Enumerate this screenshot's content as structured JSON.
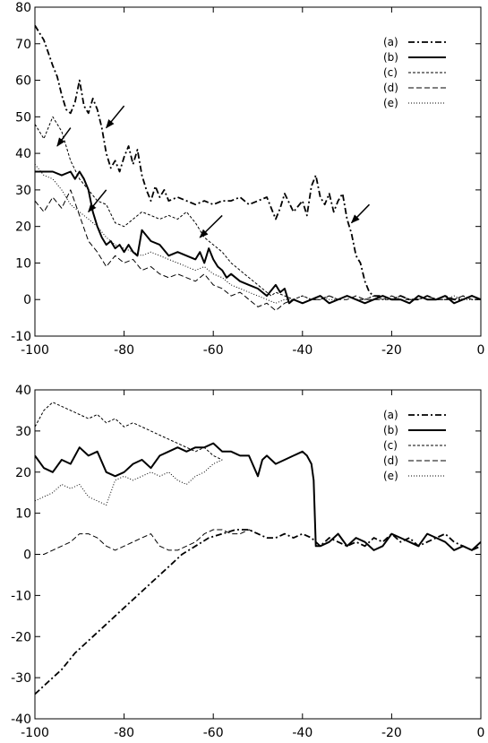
{
  "chart_data": [
    {
      "type": "line",
      "xlim": [
        -100,
        0
      ],
      "ylim": [
        -10,
        80
      ],
      "xticks": [
        -100,
        -80,
        -60,
        -40,
        -20,
        0
      ],
      "yticks": [
        -10,
        0,
        10,
        20,
        30,
        40,
        50,
        60,
        70,
        80
      ],
      "grid": false,
      "legend_position": "top-right",
      "annotations": [
        {
          "type": "arrow",
          "from": [
            -92,
            47
          ],
          "to": [
            -95,
            42
          ]
        },
        {
          "type": "arrow",
          "from": [
            -80,
            53
          ],
          "to": [
            -84,
            47
          ]
        },
        {
          "type": "arrow",
          "from": [
            -84,
            30
          ],
          "to": [
            -88,
            24
          ]
        },
        {
          "type": "arrow",
          "from": [
            -58,
            23
          ],
          "to": [
            -63,
            17
          ]
        },
        {
          "type": "arrow",
          "from": [
            -25,
            26
          ],
          "to": [
            -29,
            21
          ]
        }
      ],
      "series": [
        {
          "name": "(a)",
          "style": "dashdot",
          "width": 1.8,
          "x": [
            -100,
            -98,
            -96,
            -95,
            -94,
            -93,
            -92,
            -91,
            -90,
            -89,
            -88,
            -87,
            -86,
            -85,
            -84,
            -83,
            -82,
            -81,
            -80,
            -79,
            -78,
            -77,
            -76,
            -75,
            -74,
            -73,
            -72,
            -71,
            -70,
            -68,
            -66,
            -64,
            -62,
            -60,
            -58,
            -56,
            -54,
            -52,
            -50,
            -48,
            -46,
            -45,
            -44,
            -42,
            -40,
            -39,
            -38,
            -37,
            -36,
            -35,
            -34,
            -33,
            -32,
            -31,
            -30,
            -29,
            -28,
            -27,
            -26,
            -25,
            -24,
            -22,
            -20,
            -18,
            -16,
            -14,
            -12,
            -10,
            -8,
            -6,
            -4,
            -2,
            0
          ],
          "y": [
            75,
            71,
            64,
            61,
            56,
            52,
            51,
            54,
            60,
            53,
            51,
            55,
            52,
            47,
            40,
            36,
            38,
            35,
            39,
            42,
            37,
            41,
            34,
            30,
            27,
            31,
            28,
            30,
            27,
            28,
            27,
            26,
            27,
            26,
            27,
            27,
            28,
            26,
            27,
            28,
            22,
            25,
            29,
            24,
            27,
            23,
            31,
            34,
            28,
            26,
            29,
            24,
            27,
            29,
            22,
            18,
            12,
            10,
            5,
            2,
            1,
            1,
            0,
            1,
            0,
            0,
            1,
            0,
            1,
            0,
            0,
            1,
            0
          ]
        },
        {
          "name": "(b)",
          "style": "solid",
          "width": 2.0,
          "x": [
            -100,
            -98,
            -96,
            -94,
            -92,
            -91,
            -90,
            -89,
            -88,
            -87,
            -86,
            -85,
            -84,
            -83,
            -82,
            -81,
            -80,
            -79,
            -78,
            -77,
            -76,
            -74,
            -72,
            -70,
            -68,
            -66,
            -64,
            -63,
            -62,
            -61,
            -60,
            -59,
            -58,
            -57,
            -56,
            -54,
            -52,
            -50,
            -48,
            -46,
            -45,
            -44,
            -43,
            -42,
            -40,
            -38,
            -36,
            -34,
            -32,
            -30,
            -28,
            -26,
            -24,
            -22,
            -20,
            -18,
            -16,
            -14,
            -12,
            -10,
            -8,
            -6,
            -4,
            -2,
            0
          ],
          "y": [
            35,
            35,
            35,
            34,
            35,
            33,
            35,
            33,
            30,
            24,
            20,
            17,
            15,
            16,
            14,
            15,
            13,
            15,
            13,
            12,
            19,
            16,
            15,
            12,
            13,
            12,
            11,
            13,
            10,
            14,
            11,
            9,
            8,
            6,
            7,
            5,
            4,
            3,
            1,
            4,
            2,
            3,
            -1,
            0,
            -1,
            0,
            1,
            -1,
            0,
            1,
            0,
            -1,
            0,
            1,
            0,
            0,
            -1,
            1,
            0,
            0,
            1,
            -1,
            0,
            1,
            0
          ]
        },
        {
          "name": "(c)",
          "style": "dashed-fine",
          "width": 1.0,
          "x": [
            -100,
            -98,
            -96,
            -94,
            -92,
            -90,
            -88,
            -86,
            -84,
            -82,
            -80,
            -78,
            -76,
            -74,
            -72,
            -70,
            -68,
            -66,
            -64,
            -62,
            -60,
            -58,
            -56,
            -54,
            -52,
            -50,
            -48,
            -47,
            -46,
            -44,
            -42,
            -40,
            -38,
            -36,
            -34,
            -32,
            -30,
            -28,
            -26,
            -24,
            -22,
            -20,
            -18,
            -16,
            -14,
            -12,
            -10,
            -8,
            -6,
            -4,
            -2,
            0
          ],
          "y": [
            48,
            44,
            50,
            46,
            38,
            33,
            30,
            27,
            26,
            21,
            20,
            22,
            24,
            23,
            22,
            23,
            22,
            24,
            21,
            17,
            15,
            13,
            10,
            8,
            6,
            4,
            2,
            1,
            2,
            1,
            0,
            1,
            0,
            0,
            1,
            0,
            1,
            0,
            0,
            1,
            0,
            0,
            1,
            0,
            0,
            1,
            0,
            0,
            0,
            1,
            0,
            0
          ]
        },
        {
          "name": "(d)",
          "style": "dashed",
          "width": 1.0,
          "x": [
            -100,
            -98,
            -96,
            -94,
            -92,
            -90,
            -88,
            -86,
            -84,
            -82,
            -80,
            -78,
            -76,
            -74,
            -72,
            -70,
            -68,
            -66,
            -64,
            -62,
            -60,
            -58,
            -56,
            -54,
            -52,
            -50,
            -48,
            -46,
            -44,
            -42,
            -40,
            -38,
            -36,
            -34,
            -32,
            -30,
            -28,
            -26,
            -24,
            -22,
            -20,
            -18,
            -16,
            -14,
            -12,
            -10,
            -8,
            -6,
            -4,
            -2,
            0
          ],
          "y": [
            27,
            24,
            28,
            25,
            30,
            23,
            16,
            13,
            9,
            12,
            10,
            11,
            8,
            9,
            7,
            6,
            7,
            6,
            5,
            7,
            4,
            3,
            1,
            2,
            0,
            -2,
            -1,
            -3,
            -1,
            0,
            -1,
            0,
            0,
            1,
            0,
            0,
            1,
            0,
            0,
            0,
            1,
            0,
            0,
            0,
            1,
            0,
            0,
            0,
            1,
            0,
            0
          ]
        },
        {
          "name": "(e)",
          "style": "dotted",
          "width": 1.0,
          "x": [
            -100,
            -98,
            -96,
            -94,
            -92,
            -90,
            -88,
            -86,
            -84,
            -82,
            -80,
            -78,
            -76,
            -74,
            -72,
            -70,
            -68,
            -66,
            -64,
            -62,
            -60,
            -58,
            -56,
            -54,
            -52,
            -50,
            -48,
            -46,
            -44,
            -42,
            -40,
            -38,
            -36,
            -34,
            -32,
            -30,
            -28,
            -26,
            -24,
            -22,
            -20,
            -18,
            -16,
            -14,
            -12,
            -10,
            -8,
            -6,
            -4,
            -2,
            0
          ],
          "y": [
            37,
            34,
            33,
            30,
            26,
            24,
            22,
            20,
            17,
            15,
            14,
            13,
            12,
            13,
            12,
            11,
            10,
            9,
            8,
            9,
            7,
            6,
            4,
            3,
            2,
            1,
            0,
            -1,
            0,
            0,
            1,
            0,
            1,
            0,
            0,
            1,
            0,
            0,
            1,
            0,
            0,
            1,
            0,
            0,
            1,
            0,
            0,
            1,
            0,
            0,
            0
          ]
        }
      ]
    },
    {
      "type": "line",
      "xlim": [
        -100,
        0
      ],
      "ylim": [
        -40,
        40
      ],
      "xticks": [
        -100,
        -80,
        -60,
        -40,
        -20,
        0
      ],
      "yticks": [
        -40,
        -30,
        -20,
        -10,
        0,
        10,
        20,
        30,
        40
      ],
      "grid": false,
      "legend_position": "top-right",
      "series": [
        {
          "name": "(a)",
          "style": "dashdot",
          "width": 1.8,
          "x": [
            -100,
            -97,
            -94,
            -91,
            -88,
            -85,
            -82,
            -79,
            -76,
            -73,
            -70,
            -67,
            -64,
            -61,
            -58,
            -55,
            -52,
            -50,
            -48,
            -46,
            -44,
            -42,
            -40,
            -38,
            -36,
            -34,
            -32,
            -30,
            -28,
            -26,
            -24,
            -22,
            -20,
            -18,
            -16,
            -14,
            -12,
            -10,
            -8,
            -6,
            -4,
            -2,
            0
          ],
          "y": [
            -34,
            -31,
            -28,
            -24,
            -21,
            -18,
            -15,
            -12,
            -9,
            -6,
            -3,
            0,
            2,
            4,
            5,
            6,
            6,
            5,
            4,
            4,
            5,
            4,
            5,
            4,
            2,
            4,
            3,
            2,
            3,
            2,
            4,
            3,
            5,
            3,
            4,
            2,
            3,
            4,
            5,
            3,
            2,
            1,
            2
          ]
        },
        {
          "name": "(b)",
          "style": "solid",
          "width": 2.0,
          "x": [
            -100,
            -98,
            -96,
            -94,
            -92,
            -90,
            -88,
            -86,
            -84,
            -82,
            -80,
            -78,
            -76,
            -74,
            -72,
            -70,
            -68,
            -66,
            -64,
            -62,
            -60,
            -58,
            -56,
            -54,
            -52,
            -50,
            -49,
            -48,
            -46,
            -44,
            -42,
            -40,
            -39,
            -38,
            -37.5,
            -37,
            -36,
            -34,
            -32,
            -30,
            -28,
            -26,
            -24,
            -22,
            -20,
            -18,
            -16,
            -14,
            -12,
            -10,
            -8,
            -6,
            -4,
            -2,
            0
          ],
          "y": [
            24,
            21,
            20,
            23,
            22,
            26,
            24,
            25,
            20,
            19,
            20,
            22,
            23,
            21,
            24,
            25,
            26,
            25,
            26,
            26,
            27,
            25,
            25,
            24,
            24,
            19,
            23,
            24,
            22,
            23,
            24,
            25,
            24,
            22,
            18,
            2,
            2,
            3,
            5,
            2,
            4,
            3,
            1,
            2,
            5,
            4,
            3,
            2,
            5,
            4,
            3,
            1,
            2,
            1,
            3
          ]
        },
        {
          "name": "(c)",
          "style": "dashed-fine",
          "width": 1.0,
          "x": [
            -100,
            -98,
            -96,
            -94,
            -92,
            -90,
            -88,
            -86,
            -84,
            -82,
            -80,
            -78,
            -76,
            -74,
            -72,
            -70,
            -68,
            -66,
            -64,
            -62,
            -60,
            -58
          ],
          "y": [
            31,
            35,
            37,
            36,
            35,
            34,
            33,
            34,
            32,
            33,
            31,
            32,
            31,
            30,
            29,
            28,
            27,
            26,
            25,
            26,
            24,
            23
          ]
        },
        {
          "name": "(d)",
          "style": "dashed",
          "width": 1.0,
          "x": [
            -100,
            -98,
            -96,
            -94,
            -92,
            -90,
            -88,
            -86,
            -84,
            -82,
            -80,
            -78,
            -76,
            -74,
            -72,
            -70,
            -68,
            -66,
            -64,
            -62,
            -60,
            -58,
            -56,
            -54,
            -52,
            -50
          ],
          "y": [
            0,
            0,
            1,
            2,
            3,
            5,
            5,
            4,
            2,
            1,
            2,
            3,
            4,
            5,
            2,
            1,
            1,
            2,
            3,
            5,
            6,
            6,
            5,
            5,
            6,
            5
          ]
        },
        {
          "name": "(e)",
          "style": "dotted",
          "width": 1.0,
          "x": [
            -100,
            -98,
            -96,
            -94,
            -92,
            -90,
            -88,
            -86,
            -84,
            -82,
            -80,
            -78,
            -76,
            -74,
            -72,
            -70,
            -68,
            -66,
            -64,
            -62,
            -60,
            -58
          ],
          "y": [
            13,
            14,
            15,
            17,
            16,
            17,
            14,
            13,
            12,
            18,
            19,
            18,
            19,
            20,
            19,
            20,
            18,
            17,
            19,
            20,
            22,
            23
          ]
        }
      ]
    }
  ]
}
